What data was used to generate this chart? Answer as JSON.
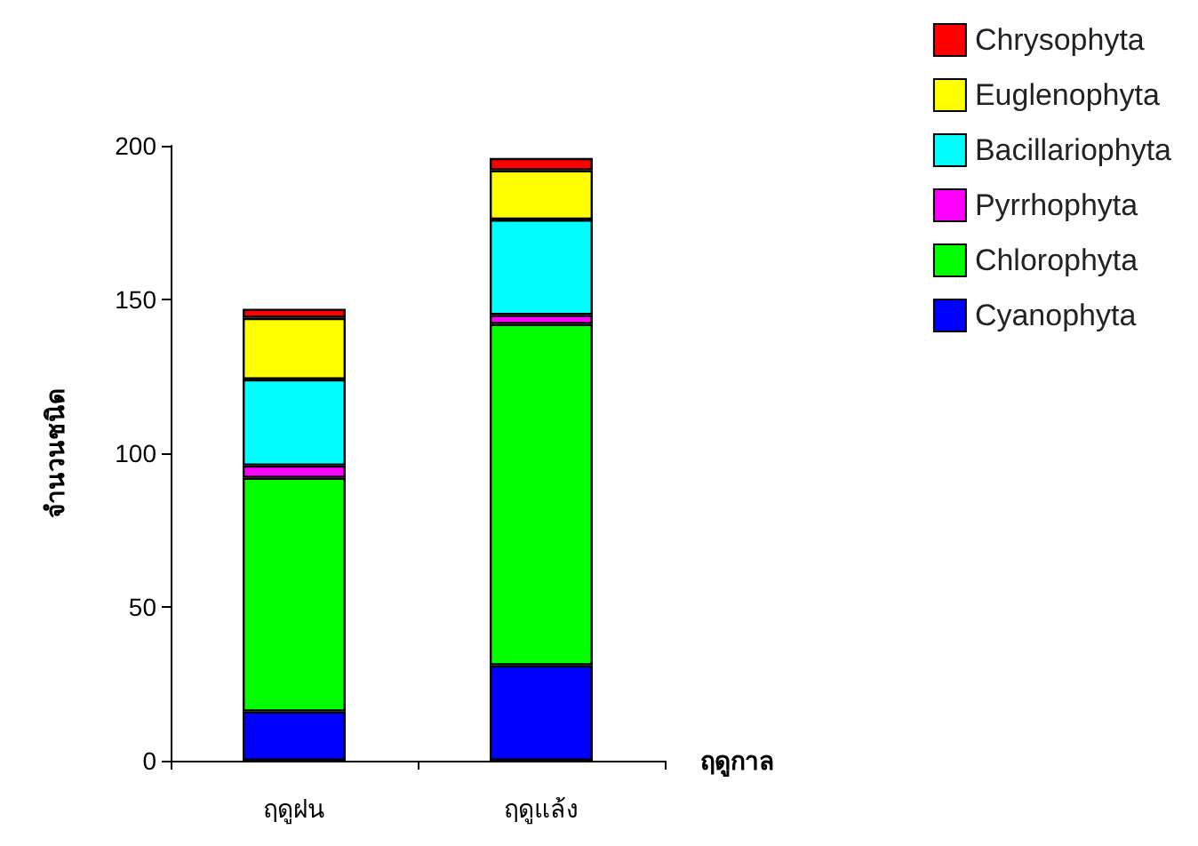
{
  "chart_data": {
    "type": "bar",
    "stacked": true,
    "xlabel": "ฤดูกาล",
    "ylabel": "จำนวนชนิด",
    "categories": [
      "ฤดูฝน",
      "ฤดูแล้ง"
    ],
    "series": [
      {
        "name": "Cyanophyta",
        "color": "#0000ff",
        "values": [
          16,
          31
        ]
      },
      {
        "name": "Chlorophyta",
        "color": "#00ff00",
        "values": [
          76,
          111
        ]
      },
      {
        "name": "Pyrrhophyta",
        "color": "#ff00ff",
        "values": [
          4,
          3
        ]
      },
      {
        "name": "Bacillariophyta",
        "color": "#00ffff",
        "values": [
          28,
          31
        ]
      },
      {
        "name": "Euglenophyta",
        "color": "#ffff00",
        "values": [
          20,
          16
        ]
      },
      {
        "name": "Chrysophyta",
        "color": "#ff0000",
        "values": [
          3,
          4
        ]
      }
    ],
    "ylim": [
      0,
      200
    ],
    "yticks": [
      0,
      50,
      100,
      150,
      200
    ],
    "grid": false,
    "legend": "top right"
  }
}
